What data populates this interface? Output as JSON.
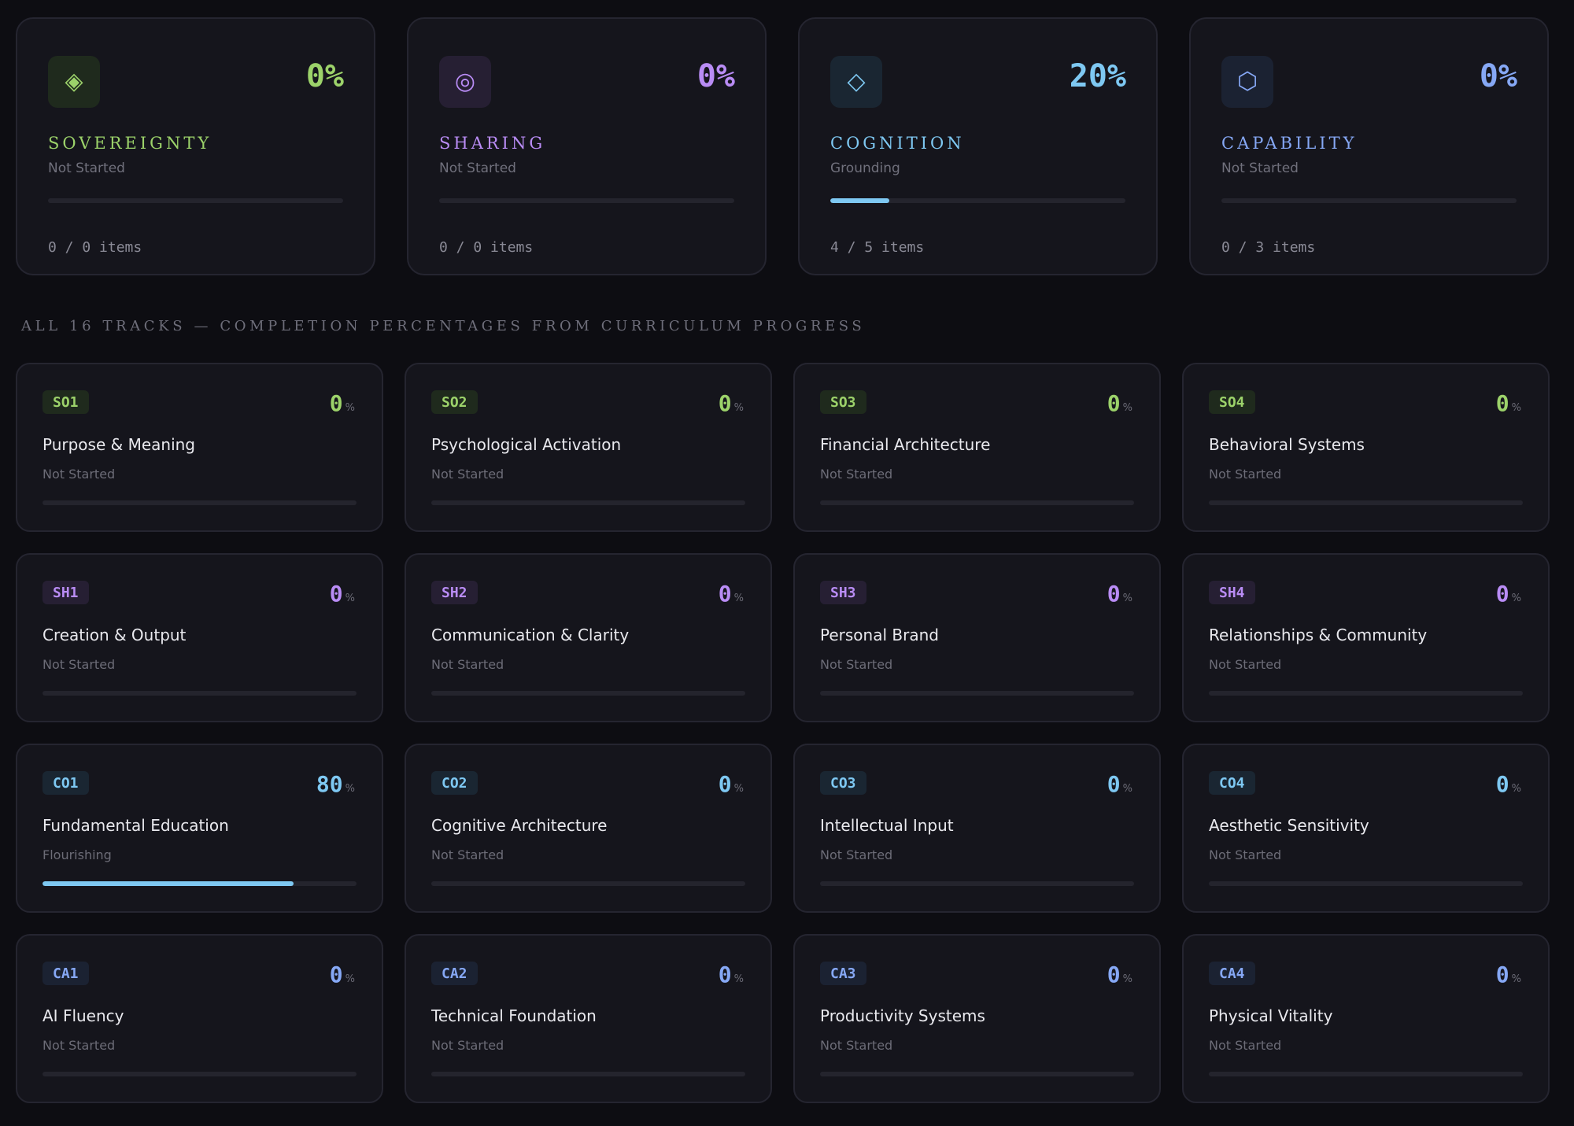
{
  "pillars": [
    {
      "icon": "◈",
      "icon_name": "diamond-icon",
      "percent": "0%",
      "percent_value": 0,
      "name": "SOVEREIGNTY",
      "status": "Not Started",
      "items": "0 / 0 items",
      "color": "#9cd26a",
      "icon_bg": "#1f2a1d"
    },
    {
      "icon": "◎",
      "icon_name": "target-circle-icon",
      "percent": "0%",
      "percent_value": 0,
      "name": "SHARING",
      "status": "Not Started",
      "items": "0 / 0 items",
      "color": "#b98cf5",
      "icon_bg": "#261f33"
    },
    {
      "icon": "◇",
      "icon_name": "diamond-outline-icon",
      "percent": "20%",
      "percent_value": 20,
      "name": "COGNITION",
      "status": "Grounding",
      "items": "4 / 5 items",
      "color": "#7ec8f2",
      "icon_bg": "#1a2632"
    },
    {
      "icon": "⬡",
      "icon_name": "hexagon-icon",
      "percent": "0%",
      "percent_value": 0,
      "name": "CAPABILITY",
      "status": "Not Started",
      "items": "0 / 3 items",
      "color": "#86a8f5",
      "icon_bg": "#1b2232"
    }
  ],
  "section_heading": "ALL 16 TRACKS — COMPLETION PERCENTAGES FROM CURRICULUM PROGRESS",
  "percent_sign": "%",
  "tracks": [
    {
      "code": "SO1",
      "name": "Purpose & Meaning",
      "status": "Not Started",
      "percent": "0",
      "percent_value": 0,
      "color": "#9cd26a",
      "badge_bg": "#1f2a1d"
    },
    {
      "code": "SO2",
      "name": "Psychological Activation",
      "status": "Not Started",
      "percent": "0",
      "percent_value": 0,
      "color": "#9cd26a",
      "badge_bg": "#1f2a1d"
    },
    {
      "code": "SO3",
      "name": "Financial Architecture",
      "status": "Not Started",
      "percent": "0",
      "percent_value": 0,
      "color": "#9cd26a",
      "badge_bg": "#1f2a1d"
    },
    {
      "code": "SO4",
      "name": "Behavioral Systems",
      "status": "Not Started",
      "percent": "0",
      "percent_value": 0,
      "color": "#9cd26a",
      "badge_bg": "#1f2a1d"
    },
    {
      "code": "SH1",
      "name": "Creation & Output",
      "status": "Not Started",
      "percent": "0",
      "percent_value": 0,
      "color": "#b98cf5",
      "badge_bg": "#261f33"
    },
    {
      "code": "SH2",
      "name": "Communication & Clarity",
      "status": "Not Started",
      "percent": "0",
      "percent_value": 0,
      "color": "#b98cf5",
      "badge_bg": "#261f33"
    },
    {
      "code": "SH3",
      "name": "Personal Brand",
      "status": "Not Started",
      "percent": "0",
      "percent_value": 0,
      "color": "#b98cf5",
      "badge_bg": "#261f33"
    },
    {
      "code": "SH4",
      "name": "Relationships & Community",
      "status": "Not Started",
      "percent": "0",
      "percent_value": 0,
      "color": "#b98cf5",
      "badge_bg": "#261f33"
    },
    {
      "code": "CO1",
      "name": "Fundamental Education",
      "status": "Flourishing",
      "percent": "80",
      "percent_value": 80,
      "color": "#7ec8f2",
      "badge_bg": "#1a2632"
    },
    {
      "code": "CO2",
      "name": "Cognitive Architecture",
      "status": "Not Started",
      "percent": "0",
      "percent_value": 0,
      "color": "#7ec8f2",
      "badge_bg": "#1a2632"
    },
    {
      "code": "CO3",
      "name": "Intellectual Input",
      "status": "Not Started",
      "percent": "0",
      "percent_value": 0,
      "color": "#7ec8f2",
      "badge_bg": "#1a2632"
    },
    {
      "code": "CO4",
      "name": "Aesthetic Sensitivity",
      "status": "Not Started",
      "percent": "0",
      "percent_value": 0,
      "color": "#7ec8f2",
      "badge_bg": "#1a2632"
    },
    {
      "code": "CA1",
      "name": "AI Fluency",
      "status": "Not Started",
      "percent": "0",
      "percent_value": 0,
      "color": "#86a8f5",
      "badge_bg": "#1b2232"
    },
    {
      "code": "CA2",
      "name": "Technical Foundation",
      "status": "Not Started",
      "percent": "0",
      "percent_value": 0,
      "color": "#86a8f5",
      "badge_bg": "#1b2232"
    },
    {
      "code": "CA3",
      "name": "Productivity Systems",
      "status": "Not Started",
      "percent": "0",
      "percent_value": 0,
      "color": "#86a8f5",
      "badge_bg": "#1b2232"
    },
    {
      "code": "CA4",
      "name": "Physical Vitality",
      "status": "Not Started",
      "percent": "0",
      "percent_value": 0,
      "color": "#86a8f5",
      "badge_bg": "#1b2232"
    }
  ]
}
